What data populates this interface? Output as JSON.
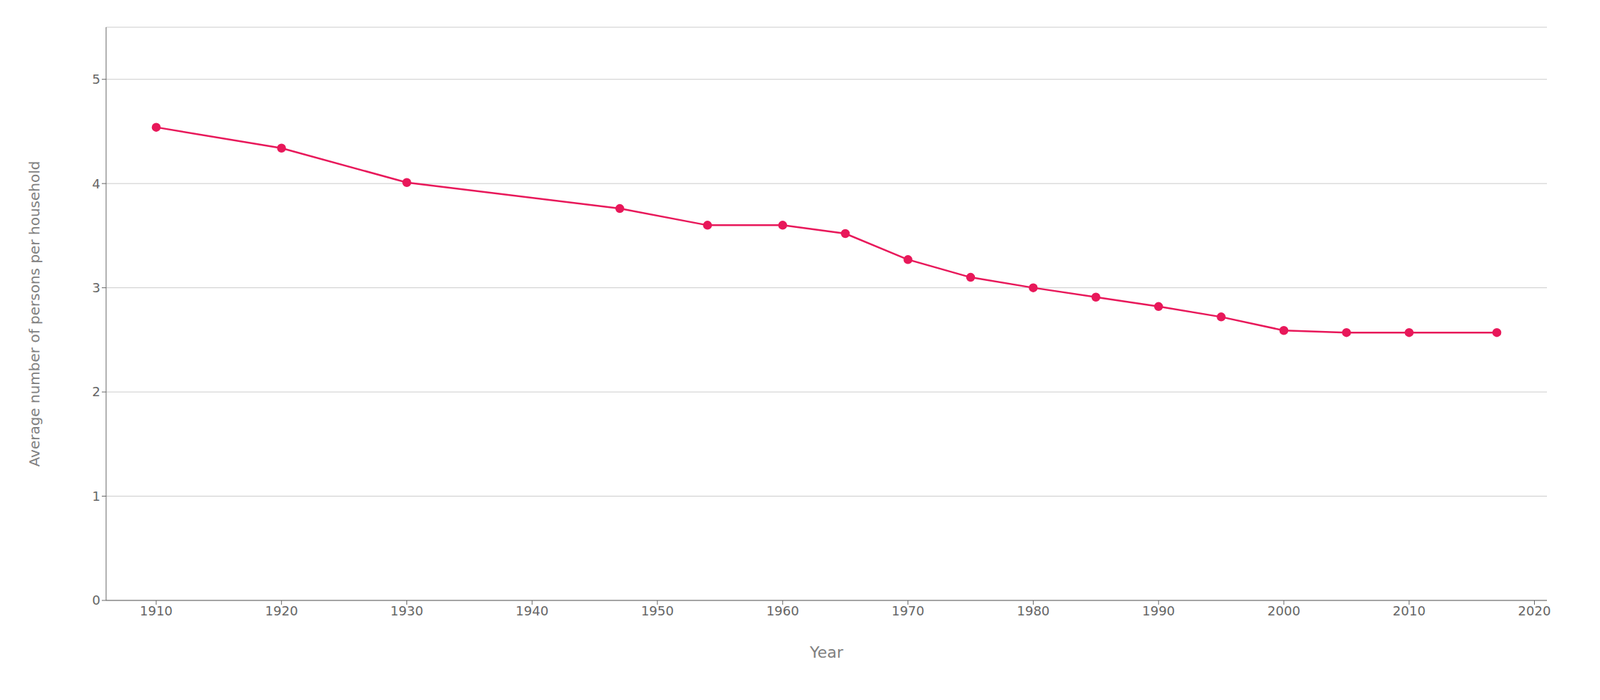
{
  "chart_data": {
    "type": "line",
    "x": [
      1910,
      1920,
      1930,
      1947,
      1954,
      1960,
      1965,
      1970,
      1975,
      1980,
      1985,
      1990,
      1995,
      2000,
      2005,
      2010,
      2017
    ],
    "values": [
      4.54,
      4.34,
      4.01,
      3.76,
      3.6,
      3.6,
      3.52,
      3.27,
      3.1,
      3.0,
      2.91,
      2.82,
      2.72,
      2.59,
      2.57,
      2.57,
      2.57
    ],
    "color": "#E8185A",
    "marker": "circle",
    "xlabel": "Year",
    "ylabel": "Average number of persons per household",
    "xlim": [
      1906,
      2021
    ],
    "xticks": [
      1910,
      1920,
      1930,
      1940,
      1950,
      1960,
      1970,
      1980,
      1990,
      2000,
      2010,
      2020
    ],
    "ylim": [
      0,
      5.5
    ],
    "yticks": [
      0,
      1,
      2,
      3,
      4,
      5
    ],
    "grid": true
  }
}
